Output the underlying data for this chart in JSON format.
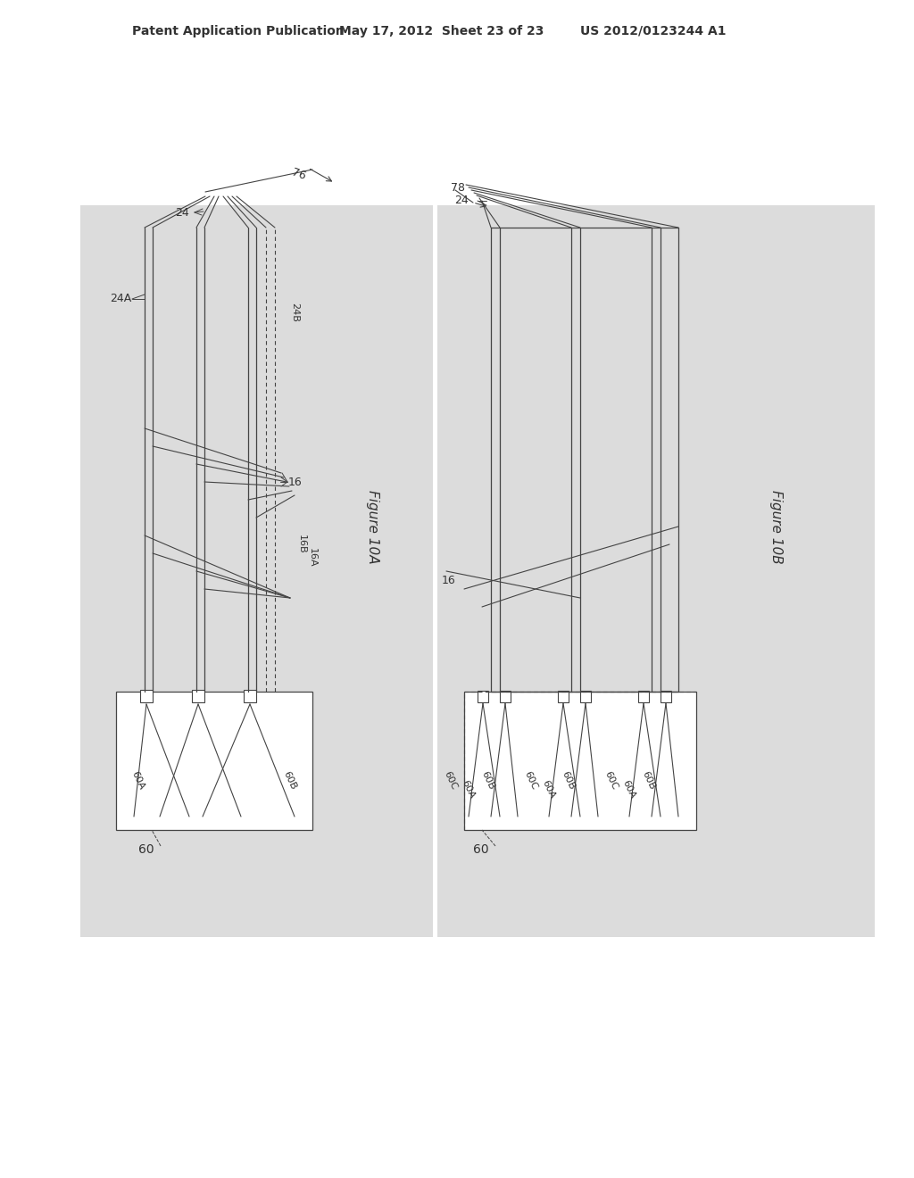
{
  "page_bg": "#ffffff",
  "bg_color": "#dcdcdc",
  "line_color": "#444444",
  "label_color": "#333333",
  "header_text": "Patent Application Publication",
  "header_date": "May 17, 2012  Sheet 23 of 23",
  "header_patent": "US 2012/0123244 A1",
  "fig10a_label": "Figure 10A",
  "fig10b_label": "Figure 10B"
}
